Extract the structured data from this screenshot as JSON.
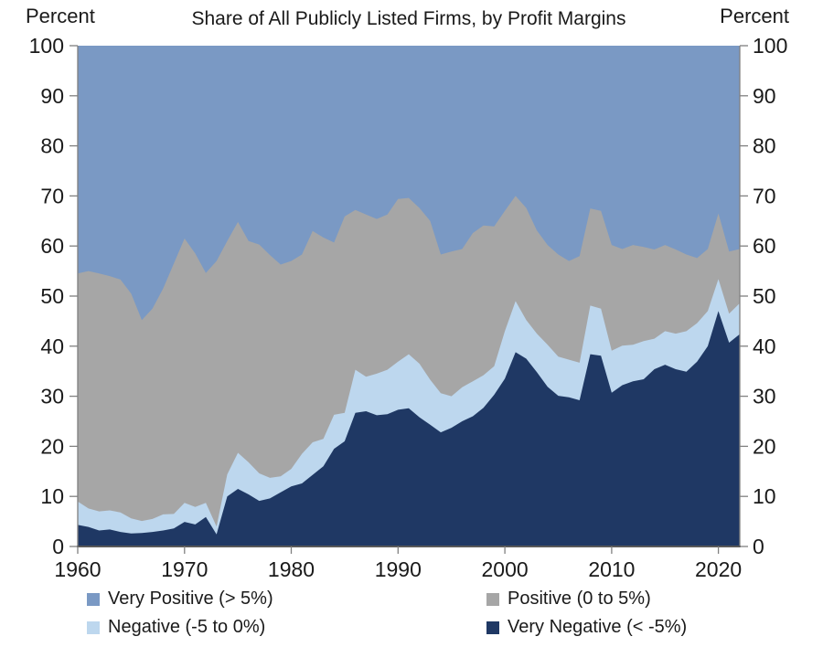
{
  "chart": {
    "title": "Share of All Publicly Listed Firms, by Profit Margins",
    "left_axis_title": "Percent",
    "right_axis_title": "Percent"
  },
  "chart_data": {
    "type": "area",
    "stacked": true,
    "title": "Share of All Publicly Listed Firms, by Profit Margins",
    "ylabel_left": "Percent",
    "ylabel_right": "Percent",
    "ylim": [
      0,
      100
    ],
    "ytick_step": 10,
    "grid": false,
    "legend_position": "bottom",
    "xticks": [
      1960,
      1970,
      1980,
      1990,
      2000,
      2010,
      2020
    ],
    "x": [
      1960,
      1961,
      1962,
      1963,
      1964,
      1965,
      1966,
      1967,
      1968,
      1969,
      1970,
      1971,
      1972,
      1973,
      1974,
      1975,
      1976,
      1977,
      1978,
      1979,
      1980,
      1981,
      1982,
      1983,
      1984,
      1985,
      1986,
      1987,
      1988,
      1989,
      1990,
      1991,
      1992,
      1993,
      1994,
      1995,
      1996,
      1997,
      1998,
      1999,
      2000,
      2001,
      2002,
      2003,
      2004,
      2005,
      2006,
      2007,
      2008,
      2009,
      2010,
      2011,
      2012,
      2013,
      2014,
      2015,
      2016,
      2017,
      2018,
      2019,
      2020,
      2021,
      2022
    ],
    "series": [
      {
        "name": "Very Negative (< -5%)",
        "key": "very-negative",
        "color": "#1f3864",
        "values": [
          4.3,
          3.9,
          3.2,
          3.4,
          2.9,
          2.6,
          2.7,
          2.9,
          3.2,
          3.6,
          4.9,
          4.4,
          5.9,
          2.4,
          10.0,
          11.5,
          10.4,
          9.1,
          9.6,
          10.8,
          12.0,
          12.6,
          14.3,
          16.0,
          19.5,
          21.0,
          26.7,
          27.0,
          26.2,
          26.4,
          27.3,
          27.6,
          25.8,
          24.3,
          22.8,
          23.7,
          25.0,
          26.0,
          27.7,
          30.3,
          33.5,
          38.8,
          37.5,
          34.8,
          31.9,
          30.1,
          29.8,
          29.2,
          38.4,
          38.1,
          30.7,
          32.2,
          33.0,
          33.4,
          35.4,
          36.3,
          35.4,
          34.9,
          36.9,
          40.0,
          47.0,
          40.7,
          42.4
        ]
      },
      {
        "name": "Negative (-5 to 0%)",
        "key": "negative",
        "color": "#bdd7ee",
        "values": [
          4.7,
          3.7,
          3.8,
          3.8,
          3.9,
          3.0,
          2.4,
          2.6,
          3.2,
          2.9,
          3.8,
          3.5,
          2.8,
          1.6,
          4.4,
          7.2,
          6.4,
          5.5,
          4.1,
          3.2,
          3.5,
          5.9,
          6.5,
          5.5,
          6.8,
          5.7,
          8.6,
          6.9,
          8.3,
          8.9,
          9.6,
          10.8,
          10.7,
          9.0,
          7.8,
          6.3,
          6.8,
          7.0,
          6.5,
          5.7,
          9.5,
          10.2,
          7.7,
          7.7,
          8.4,
          7.8,
          7.5,
          7.5,
          9.7,
          9.4,
          8.4,
          7.9,
          7.3,
          7.6,
          6.1,
          6.7,
          7.1,
          8.1,
          7.7,
          7.0,
          6.4,
          5.8,
          6.2
        ]
      },
      {
        "name": "Positive (0 to 5%)",
        "key": "positive",
        "color": "#a6a6a6",
        "values": [
          45.5,
          47.4,
          47.5,
          46.8,
          46.5,
          44.9,
          40.1,
          42.0,
          45.1,
          50.0,
          52.8,
          50.6,
          45.9,
          53.0,
          46.6,
          46.1,
          44.2,
          45.7,
          44.5,
          42.3,
          41.5,
          39.8,
          42.2,
          40.2,
          34.4,
          39.2,
          31.9,
          32.4,
          30.9,
          31.0,
          32.5,
          31.2,
          31.1,
          31.7,
          27.7,
          28.9,
          27.6,
          29.6,
          29.9,
          27.9,
          24.0,
          21.0,
          22.4,
          20.6,
          19.9,
          20.4,
          19.7,
          21.3,
          19.4,
          19.5,
          21.1,
          19.3,
          19.9,
          18.8,
          17.8,
          17.2,
          16.8,
          15.3,
          13.0,
          12.4,
          13.1,
          12.4,
          10.8
        ]
      },
      {
        "name": "Very Positive (> 5%)",
        "key": "very-positive",
        "color": "#7a99c4",
        "values": [
          45.5,
          45.0,
          45.5,
          46.0,
          46.7,
          49.5,
          54.8,
          52.5,
          48.5,
          43.5,
          38.5,
          41.5,
          45.4,
          43.0,
          39.0,
          35.2,
          39.0,
          39.7,
          41.8,
          43.7,
          43.0,
          41.7,
          37.0,
          38.3,
          39.3,
          34.1,
          32.8,
          33.7,
          34.6,
          33.7,
          30.6,
          30.4,
          32.4,
          35.0,
          41.7,
          41.1,
          40.6,
          37.4,
          35.9,
          36.1,
          33.0,
          30.0,
          32.4,
          36.9,
          39.8,
          41.7,
          43.0,
          42.0,
          32.5,
          33.0,
          39.8,
          40.6,
          39.8,
          40.2,
          40.7,
          39.8,
          40.7,
          41.7,
          42.4,
          40.6,
          33.5,
          41.1,
          40.6
        ]
      }
    ],
    "legend_columns": [
      [
        {
          "label": "Very Positive (> 5%)",
          "color": "#7a99c4",
          "key": "very-positive"
        },
        {
          "label": "Negative (-5 to 0%)",
          "color": "#bdd7ee",
          "key": "negative"
        }
      ],
      [
        {
          "label": "Positive (0 to 5%)",
          "color": "#a6a6a6",
          "key": "positive"
        },
        {
          "label": "Very Negative (< -5%)",
          "color": "#1f3864",
          "key": "very-negative"
        }
      ]
    ],
    "axis_colors": {
      "spine": "#808080",
      "bottom_spine": "#595959",
      "text": "#1a1a1a"
    }
  }
}
